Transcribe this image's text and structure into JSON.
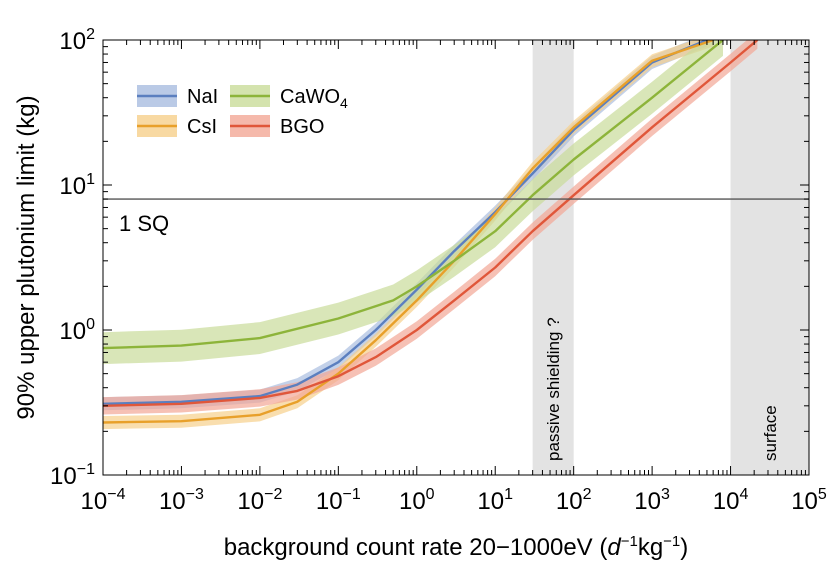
{
  "chart_data": {
    "type": "line",
    "x_scale": "log",
    "y_scale": "log",
    "xlim": [
      0.0001,
      100000
    ],
    "ylim": [
      0.1,
      100
    ],
    "xlabel": "background count rate 20−1000eV (d⁻¹kg⁻¹)",
    "ylabel": "90% upper plutonium limit (kg)",
    "xlabel_parts": {
      "pre": "background count rate 20−1000eV (",
      "d": "d",
      "e1": "−1",
      "kg": "kg",
      "e2": "−1",
      "post": ")"
    },
    "x_ticks": [
      {
        "value": 0.0001,
        "base": "10",
        "exp": "−4"
      },
      {
        "value": 0.001,
        "base": "10",
        "exp": "−3"
      },
      {
        "value": 0.01,
        "base": "10",
        "exp": "−2"
      },
      {
        "value": 0.1,
        "base": "10",
        "exp": "−1"
      },
      {
        "value": 1,
        "base": "10",
        "exp": "0"
      },
      {
        "value": 10,
        "base": "10",
        "exp": "1"
      },
      {
        "value": 100,
        "base": "10",
        "exp": "2"
      },
      {
        "value": 1000,
        "base": "10",
        "exp": "3"
      },
      {
        "value": 10000,
        "base": "10",
        "exp": "4"
      },
      {
        "value": 100000,
        "base": "10",
        "exp": "5"
      }
    ],
    "y_ticks": [
      {
        "value": 0.1,
        "base": "10",
        "exp": "−1"
      },
      {
        "value": 1,
        "base": "10",
        "exp": "0"
      },
      {
        "value": 10,
        "base": "10",
        "exp": "1"
      },
      {
        "value": 100,
        "base": "10",
        "exp": "2"
      }
    ],
    "grid": false,
    "legend_position": "top-left",
    "series": [
      {
        "name": "NaI",
        "label_base": "NaI",
        "label_sub": "",
        "color": "#5b7fbf",
        "band_color": "#a9bde0",
        "x": [
          0.0001,
          0.001,
          0.01,
          0.03,
          0.1,
          0.3,
          1,
          3,
          10,
          30,
          100,
          1000,
          5000
        ],
        "y": [
          0.31,
          0.32,
          0.35,
          0.42,
          0.6,
          1.0,
          1.9,
          3.5,
          6.5,
          12,
          24,
          70,
          100
        ],
        "band_width": 0.045
      },
      {
        "name": "CsI",
        "label_base": "CsI",
        "label_sub": "",
        "color": "#e8a02a",
        "band_color": "#f6d08b",
        "x": [
          0.0001,
          0.001,
          0.01,
          0.03,
          0.1,
          0.3,
          1,
          3,
          10,
          30,
          100,
          1000,
          6000
        ],
        "y": [
          0.23,
          0.235,
          0.26,
          0.32,
          0.5,
          0.85,
          1.6,
          3.0,
          6.3,
          13,
          25,
          72,
          100
        ],
        "band_width": 0.045
      },
      {
        "name": "CaWO4",
        "label_base": "CaWO",
        "label_sub": "4",
        "color": "#8db43a",
        "band_color": "#c9dc9a",
        "x": [
          0.0001,
          0.001,
          0.01,
          0.1,
          0.5,
          1,
          3,
          10,
          30,
          100,
          1000,
          8000
        ],
        "y": [
          0.75,
          0.78,
          0.88,
          1.2,
          1.6,
          2.0,
          3.0,
          4.8,
          8.5,
          15,
          40,
          100
        ],
        "band_width": 0.11
      },
      {
        "name": "BGO",
        "label_base": "BGO",
        "label_sub": "",
        "color": "#e0573a",
        "band_color": "#f2a796",
        "x": [
          0.0001,
          0.001,
          0.01,
          0.03,
          0.1,
          0.3,
          1,
          3,
          10,
          30,
          100,
          1000,
          10000,
          22000
        ],
        "y": [
          0.3,
          0.31,
          0.34,
          0.38,
          0.48,
          0.65,
          1.0,
          1.6,
          2.7,
          4.8,
          8.5,
          25,
          70,
          100
        ],
        "band_width": 0.06
      }
    ],
    "reference_line": {
      "y": 8,
      "label": "1 SQ",
      "color": "#555555"
    },
    "shaded_regions": [
      {
        "x_range": [
          30,
          100
        ],
        "label": "passive shielding ?",
        "color": "#e3e3e3"
      },
      {
        "x_range": [
          10000,
          100000
        ],
        "label": "surface",
        "color": "#e3e3e3"
      }
    ]
  }
}
